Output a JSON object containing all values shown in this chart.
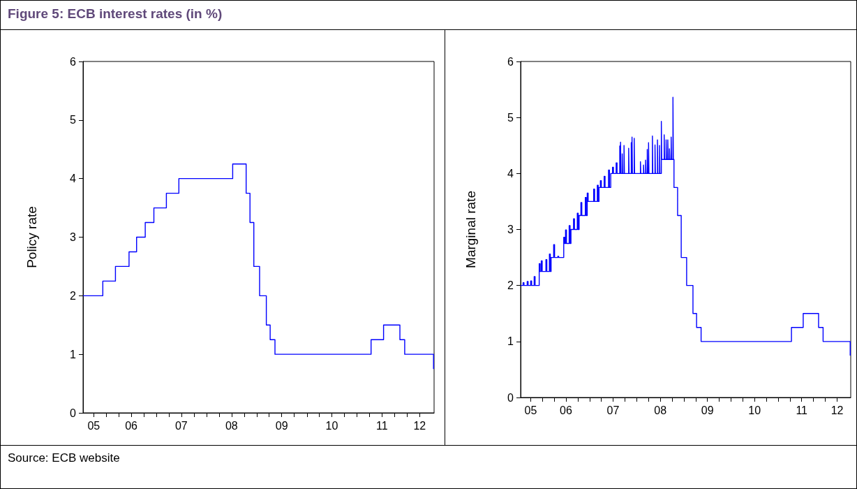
{
  "chart_data": [
    {
      "type": "step",
      "title": "Figure 5: ECB interest rates (in %)",
      "annotations": [
        "Source: ECB website"
      ],
      "ylabel": "Policy rate",
      "x": [
        "2005-07-15",
        "2005-12-06",
        "2006-03-08",
        "2006-06-15",
        "2006-08-09",
        "2006-10-11",
        "2006-12-13",
        "2007-03-14",
        "2007-06-13",
        "2008-07-09",
        "2008-10-15",
        "2008-11-12",
        "2008-12-10",
        "2009-01-21",
        "2009-03-11",
        "2009-04-08",
        "2009-05-13",
        "2011-04-13",
        "2011-07-13",
        "2011-11-09",
        "2011-12-14",
        "2012-07-11"
      ],
      "series": [
        {
          "color": "#0000ff",
          "values": [
            2,
            2.25,
            2.5,
            2.75,
            3,
            3.25,
            3.5,
            3.75,
            4,
            4.25,
            3.75,
            3.25,
            2.5,
            2,
            1.5,
            1.25,
            1,
            1.25,
            1.5,
            1.25,
            1,
            0.75
          ]
        }
      ],
      "xlim": [
        "2005-07-15",
        "2012-07-15"
      ],
      "xticks": [
        {
          "value": "2005-10-01",
          "label": "05"
        },
        {
          "value": "2006-01-01",
          "label": null
        },
        {
          "value": "2006-04-01",
          "label": null
        },
        {
          "value": "2006-07-01",
          "label": "06"
        },
        {
          "value": "2006-10-01",
          "label": null
        },
        {
          "value": "2007-01-01",
          "label": null
        },
        {
          "value": "2007-04-01",
          "label": null
        },
        {
          "value": "2007-07-01",
          "label": "07"
        },
        {
          "value": "2007-10-01",
          "label": null
        },
        {
          "value": "2008-01-01",
          "label": null
        },
        {
          "value": "2008-04-01",
          "label": null
        },
        {
          "value": "2008-07-01",
          "label": "08"
        },
        {
          "value": "2008-10-01",
          "label": null
        },
        {
          "value": "2009-01-01",
          "label": null
        },
        {
          "value": "2009-04-01",
          "label": null
        },
        {
          "value": "2009-07-01",
          "label": "09"
        },
        {
          "value": "2009-10-01",
          "label": null
        },
        {
          "value": "2010-01-01",
          "label": null
        },
        {
          "value": "2010-04-01",
          "label": null
        },
        {
          "value": "2010-07-01",
          "label": "10"
        },
        {
          "value": "2010-10-01",
          "label": null
        },
        {
          "value": "2011-01-01",
          "label": null
        },
        {
          "value": "2011-04-01",
          "label": null
        },
        {
          "value": "2011-07-01",
          "label": "11"
        },
        {
          "value": "2011-10-01",
          "label": null
        },
        {
          "value": "2012-01-01",
          "label": null
        },
        {
          "value": "2012-04-01",
          "label": "12"
        }
      ],
      "ylim": [
        0,
        6
      ],
      "yticks": [
        0,
        1,
        2,
        3,
        4,
        5,
        6
      ]
    },
    {
      "type": "step",
      "ylabel": "Marginal rate",
      "x": [
        "2005-07-15",
        "2005-08-03",
        "2005-08-10",
        "2005-09-04",
        "2005-09-11",
        "2005-10-01",
        "2005-10-08",
        "2005-10-28",
        "2005-11-04",
        "2005-12-06",
        "2005-12-13",
        "2005-12-22",
        "2005-12-29",
        "2006-01-27",
        "2006-02-03",
        "2006-02-23",
        "2006-03-02",
        "2006-03-08",
        "2006-03-28",
        "2006-04-04",
        "2006-04-29",
        "2006-05-06",
        "2006-06-14",
        "2006-06-21",
        "2006-06-28",
        "2006-07-05",
        "2006-07-26",
        "2006-08-02",
        "2006-08-09",
        "2006-08-29",
        "2006-09-05",
        "2006-09-27",
        "2006-10-04",
        "2006-10-11",
        "2006-10-25",
        "2006-11-01",
        "2006-11-28",
        "2006-12-05",
        "2006-12-13",
        "2006-12-20",
        "2007-02-01",
        "2007-02-08",
        "2007-03-01",
        "2007-03-08",
        "2007-03-14",
        "2007-03-25",
        "2007-04-01",
        "2007-04-23",
        "2007-04-30",
        "2007-05-27",
        "2007-06-03",
        "2007-06-13",
        "2007-06-27",
        "2007-07-04",
        "2007-07-25",
        "2007-08-01",
        "2007-08-22",
        "2007-08-25",
        "2007-08-28",
        "2007-08-31",
        "2007-09-10",
        "2007-09-13",
        "2007-09-24",
        "2007-09-27",
        "2007-10-30",
        "2007-11-02",
        "2007-11-19",
        "2007-11-22",
        "2007-11-25",
        "2007-11-28",
        "2007-12-12",
        "2007-12-15",
        "2008-01-29",
        "2008-02-01",
        "2008-02-22",
        "2008-02-25",
        "2008-03-09",
        "2008-03-12",
        "2008-03-22",
        "2008-03-25",
        "2008-04-01",
        "2008-04-04",
        "2008-05-01",
        "2008-05-04",
        "2008-05-21",
        "2008-05-24",
        "2008-06-09",
        "2008-06-12",
        "2008-06-25",
        "2008-06-28",
        "2008-07-09",
        "2008-07-12",
        "2008-07-31",
        "2008-08-03",
        "2008-08-15",
        "2008-08-18",
        "2008-08-28",
        "2008-08-31",
        "2008-09-10",
        "2008-09-13",
        "2008-09-23",
        "2008-09-26",
        "2008-10-07",
        "2008-10-10",
        "2008-10-15",
        "2008-11-12",
        "2008-12-10",
        "2009-01-21",
        "2009-03-11",
        "2009-04-08",
        "2009-05-13",
        "2011-04-13",
        "2011-07-13",
        "2011-11-09",
        "2011-12-14",
        "2012-07-11"
      ],
      "series": [
        {
          "color": "#0000ff",
          "values": [
            2,
            2.05,
            2,
            2.07,
            2,
            2.08,
            2,
            2.16,
            2,
            2.39,
            2.25,
            2.44,
            2.25,
            2.46,
            2.25,
            2.56,
            2.25,
            2.5,
            2.73,
            2.5,
            2.52,
            2.5,
            2.86,
            2.75,
            2.99,
            2.75,
            3.07,
            2.75,
            3,
            3.19,
            3,
            3.29,
            3,
            3.25,
            3.48,
            3.25,
            3.57,
            3.25,
            3.65,
            3.5,
            3.72,
            3.5,
            3.79,
            3.5,
            3.75,
            3.87,
            3.75,
            3.95,
            3.75,
            4.06,
            3.75,
            4,
            4.11,
            4,
            4.19,
            4,
            4.49,
            4,
            4.56,
            4,
            4.35,
            4,
            4.5,
            4,
            4.45,
            4,
            4.55,
            4,
            4.65,
            4,
            4.63,
            4,
            4.21,
            4,
            4.15,
            4,
            4.24,
            4,
            4.43,
            4,
            4.55,
            4,
            4.67,
            4,
            4.51,
            4,
            4.6,
            4,
            4.5,
            4,
            4.93,
            4.25,
            4.69,
            4.25,
            4.6,
            4.25,
            4.6,
            4.25,
            4.44,
            4.25,
            4.65,
            4.25,
            5.36,
            4.25,
            3.75,
            3.25,
            2.5,
            2,
            1.5,
            1.25,
            1,
            1.25,
            1.5,
            1.25,
            1,
            0.75
          ]
        }
      ],
      "xlim": [
        "2005-07-15",
        "2012-07-15"
      ],
      "xticks": [
        {
          "value": "2005-10-01",
          "label": "05"
        },
        {
          "value": "2006-01-01",
          "label": null
        },
        {
          "value": "2006-04-01",
          "label": null
        },
        {
          "value": "2006-07-01",
          "label": "06"
        },
        {
          "value": "2006-10-01",
          "label": null
        },
        {
          "value": "2007-01-01",
          "label": null
        },
        {
          "value": "2007-04-01",
          "label": null
        },
        {
          "value": "2007-07-01",
          "label": "07"
        },
        {
          "value": "2007-10-01",
          "label": null
        },
        {
          "value": "2008-01-01",
          "label": null
        },
        {
          "value": "2008-04-01",
          "label": null
        },
        {
          "value": "2008-07-01",
          "label": "08"
        },
        {
          "value": "2008-10-01",
          "label": null
        },
        {
          "value": "2009-01-01",
          "label": null
        },
        {
          "value": "2009-04-01",
          "label": null
        },
        {
          "value": "2009-07-01",
          "label": "09"
        },
        {
          "value": "2009-10-01",
          "label": null
        },
        {
          "value": "2010-01-01",
          "label": null
        },
        {
          "value": "2010-04-01",
          "label": null
        },
        {
          "value": "2010-07-01",
          "label": "10"
        },
        {
          "value": "2010-10-01",
          "label": null
        },
        {
          "value": "2011-01-01",
          "label": null
        },
        {
          "value": "2011-04-01",
          "label": null
        },
        {
          "value": "2011-07-01",
          "label": "11"
        },
        {
          "value": "2011-10-01",
          "label": null
        },
        {
          "value": "2012-01-01",
          "label": null
        },
        {
          "value": "2012-04-01",
          "label": "12"
        }
      ],
      "ylim": [
        0,
        6
      ],
      "yticks": [
        0,
        1,
        2,
        3,
        4,
        5,
        6
      ]
    }
  ]
}
